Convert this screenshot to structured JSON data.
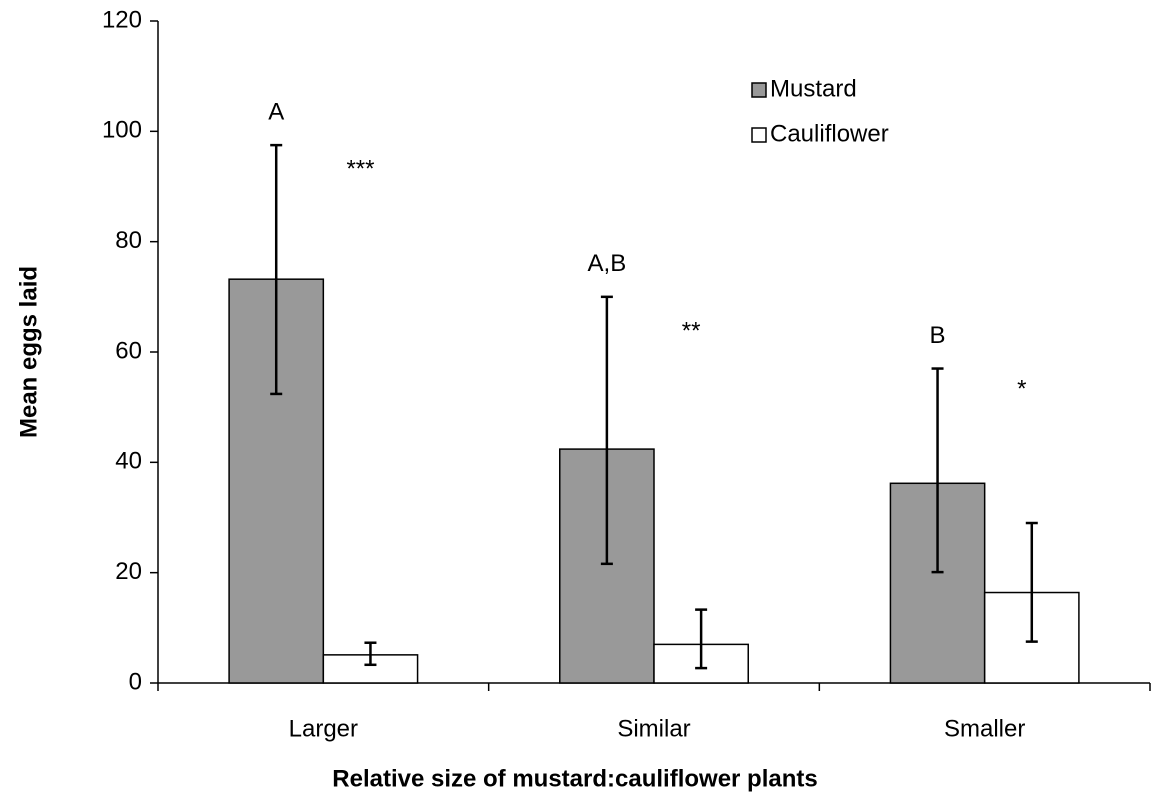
{
  "chart_data": {
    "type": "bar",
    "xlabel": "Relative size of mustard:cauliflower plants",
    "ylabel": "Mean eggs laid",
    "categories": [
      "Larger",
      "Similar",
      "Smaller"
    ],
    "series": [
      {
        "name": "Mustard",
        "color": "#999999",
        "values": [
          73.2,
          42.4,
          36.2
        ],
        "error_minus": [
          20.8,
          20.8,
          16.1
        ],
        "error_plus": [
          24.3,
          27.6,
          20.8
        ]
      },
      {
        "name": "Cauliflower",
        "color": "#ffffff",
        "values": [
          5.1,
          7.0,
          16.4
        ],
        "error_minus": [
          1.8,
          4.3,
          8.9
        ],
        "error_plus": [
          2.2,
          6.3,
          12.6
        ]
      }
    ],
    "letters": [
      "A",
      "A,B",
      "B"
    ],
    "significance": [
      "***",
      "**",
      "*"
    ],
    "ylim": [
      0,
      120
    ],
    "yticks": [
      0,
      20,
      40,
      60,
      80,
      100,
      120
    ],
    "legend": "top-right"
  }
}
